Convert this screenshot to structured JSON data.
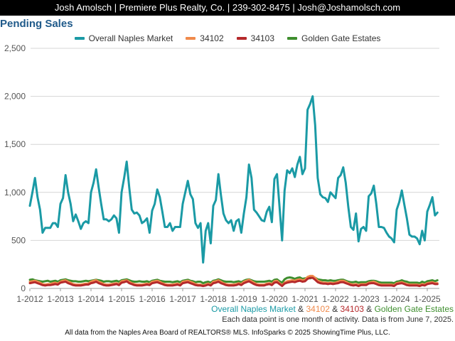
{
  "header": {
    "text": "Josh Amolsch | Premiere Plus Realty, Co. | 239-302-8475 | Josh@Joshamolsch.com"
  },
  "captions": {
    "series_line": [
      {
        "text": "Overall Naples Market",
        "color": "#1a9aa5"
      },
      {
        "text": " & ",
        "color": "#333333"
      },
      {
        "text": "34102",
        "color": "#f08a4b"
      },
      {
        "text": " & ",
        "color": "#333333"
      },
      {
        "text": "34103",
        "color": "#b5292b"
      },
      {
        "text": " & ",
        "color": "#333333"
      },
      {
        "text": "Golden Gate Estates",
        "color": "#3e8e2e"
      }
    ],
    "note": "Each data point is one month of activity. Data is from June 7, 2025.",
    "footer": "All data from the Naples Area Board of REALTORS® MLS. InfoSparks © 2025 ShowingTime Plus, LLC."
  },
  "chart_data": {
    "type": "line",
    "title": "Pending Sales",
    "x_start": "2012-01",
    "x_ticks": [
      "1-2012",
      "1-2013",
      "1-2014",
      "1-2015",
      "1-2016",
      "1-2017",
      "1-2018",
      "1-2019",
      "1-2020",
      "1-2021",
      "1-2022",
      "1-2023",
      "1-2024",
      "1-2025"
    ],
    "y_ticks": [
      "0",
      "500",
      "1,000",
      "1,500",
      "2,000",
      "2,500"
    ],
    "ylim": [
      0,
      2500
    ],
    "grid": true,
    "legend_position": "top",
    "series": [
      {
        "name": "Overall Naples Market",
        "color": "#1a9aa5",
        "values": [
          860,
          1000,
          1150,
          950,
          820,
          580,
          630,
          630,
          630,
          680,
          680,
          640,
          880,
          940,
          1180,
          1000,
          880,
          700,
          770,
          700,
          620,
          680,
          700,
          680,
          1000,
          1100,
          1240,
          1050,
          880,
          720,
          720,
          700,
          720,
          760,
          730,
          580,
          1000,
          1150,
          1320,
          1050,
          820,
          780,
          790,
          760,
          680,
          700,
          730,
          580,
          810,
          880,
          1030,
          950,
          800,
          640,
          640,
          680,
          600,
          640,
          640,
          640,
          880,
          1000,
          1120,
          980,
          930,
          680,
          630,
          680,
          270,
          600,
          680,
          470,
          860,
          920,
          1190,
          970,
          780,
          710,
          680,
          710,
          600,
          700,
          720,
          580,
          780,
          950,
          1290,
          1150,
          820,
          790,
          750,
          710,
          700,
          800,
          850,
          690,
          1140,
          1190,
          850,
          500,
          1020,
          1230,
          1200,
          1250,
          1160,
          1290,
          1370,
          1190,
          1250,
          1860,
          1920,
          2000,
          1700,
          1150,
          980,
          950,
          940,
          900,
          1000,
          970,
          940,
          1150,
          1180,
          1260,
          1100,
          850,
          640,
          610,
          780,
          490,
          620,
          640,
          600,
          960,
          990,
          1070,
          880,
          640,
          640,
          630,
          580,
          540,
          520,
          480,
          820,
          900,
          1020,
          870,
          730,
          560,
          540,
          540,
          520,
          460,
          600,
          500,
          800,
          870,
          950,
          760,
          790
        ]
      },
      {
        "name": "34102",
        "color": "#f08a4b",
        "values": [
          70,
          75,
          80,
          70,
          60,
          45,
          40,
          45,
          45,
          55,
          60,
          50,
          70,
          80,
          85,
          70,
          60,
          45,
          40,
          40,
          40,
          45,
          50,
          50,
          70,
          80,
          85,
          70,
          60,
          45,
          40,
          40,
          45,
          50,
          55,
          45,
          75,
          80,
          85,
          70,
          55,
          45,
          40,
          40,
          40,
          45,
          50,
          45,
          70,
          75,
          80,
          70,
          55,
          45,
          40,
          40,
          40,
          45,
          50,
          40,
          70,
          75,
          80,
          70,
          60,
          45,
          40,
          40,
          30,
          40,
          50,
          40,
          70,
          75,
          85,
          70,
          55,
          45,
          40,
          40,
          40,
          45,
          55,
          45,
          70,
          80,
          90,
          75,
          60,
          45,
          40,
          40,
          40,
          50,
          55,
          45,
          75,
          80,
          55,
          35,
          60,
          75,
          80,
          85,
          80,
          90,
          95,
          85,
          90,
          120,
          130,
          130,
          110,
          80,
          70,
          60,
          60,
          55,
          60,
          55,
          60,
          70,
          80,
          80,
          70,
          55,
          45,
          40,
          45,
          35,
          45,
          45,
          45,
          60,
          65,
          70,
          60,
          45,
          40,
          40,
          40,
          40,
          40,
          35,
          55,
          60,
          65,
          55,
          45,
          40,
          40,
          40,
          40,
          35,
          45,
          40,
          55,
          60,
          65,
          55,
          55
        ]
      },
      {
        "name": "34103",
        "color": "#b5292b",
        "values": [
          55,
          60,
          65,
          55,
          45,
          35,
          30,
          35,
          35,
          40,
          45,
          40,
          60,
          65,
          70,
          55,
          45,
          35,
          30,
          30,
          30,
          35,
          40,
          40,
          55,
          60,
          70,
          55,
          45,
          35,
          30,
          30,
          35,
          40,
          45,
          35,
          60,
          65,
          75,
          55,
          45,
          35,
          30,
          30,
          30,
          35,
          40,
          35,
          55,
          60,
          65,
          55,
          45,
          35,
          30,
          30,
          30,
          35,
          40,
          30,
          55,
          60,
          65,
          55,
          45,
          35,
          30,
          30,
          25,
          30,
          40,
          30,
          55,
          60,
          70,
          55,
          45,
          35,
          30,
          30,
          30,
          35,
          45,
          35,
          55,
          65,
          75,
          60,
          45,
          35,
          30,
          30,
          30,
          40,
          45,
          35,
          60,
          65,
          45,
          25,
          50,
          60,
          65,
          70,
          65,
          75,
          80,
          70,
          75,
          100,
          110,
          110,
          90,
          65,
          55,
          50,
          50,
          45,
          50,
          45,
          50,
          55,
          65,
          65,
          55,
          45,
          35,
          30,
          35,
          25,
          35,
          35,
          35,
          50,
          55,
          55,
          45,
          35,
          30,
          30,
          30,
          30,
          30,
          25,
          45,
          50,
          55,
          45,
          35,
          30,
          30,
          30,
          30,
          25,
          35,
          30,
          45,
          50,
          55,
          45,
          45
        ]
      },
      {
        "name": "Golden Gate Estates",
        "color": "#3e8e2e",
        "values": [
          90,
          95,
          85,
          80,
          75,
          70,
          75,
          80,
          70,
          75,
          80,
          70,
          85,
          90,
          95,
          85,
          80,
          75,
          75,
          70,
          70,
          75,
          80,
          75,
          80,
          85,
          90,
          85,
          80,
          70,
          75,
          75,
          70,
          75,
          80,
          70,
          85,
          90,
          95,
          85,
          75,
          70,
          70,
          75,
          70,
          70,
          75,
          65,
          80,
          85,
          90,
          80,
          75,
          70,
          70,
          70,
          65,
          70,
          75,
          65,
          80,
          85,
          90,
          80,
          75,
          65,
          70,
          70,
          55,
          65,
          70,
          60,
          80,
          85,
          95,
          85,
          75,
          70,
          70,
          70,
          65,
          70,
          75,
          65,
          80,
          90,
          95,
          85,
          75,
          70,
          70,
          70,
          70,
          75,
          80,
          70,
          90,
          95,
          75,
          60,
          95,
          110,
          115,
          110,
          100,
          110,
          115,
          100,
          105,
          110,
          105,
          115,
          110,
          95,
          90,
          85,
          85,
          80,
          85,
          80,
          80,
          85,
          90,
          90,
          80,
          70,
          65,
          65,
          70,
          60,
          65,
          65,
          65,
          75,
          80,
          80,
          75,
          65,
          60,
          60,
          60,
          60,
          60,
          55,
          70,
          75,
          85,
          75,
          70,
          60,
          60,
          60,
          60,
          55,
          70,
          60,
          75,
          80,
          85,
          75,
          85
        ]
      }
    ]
  }
}
